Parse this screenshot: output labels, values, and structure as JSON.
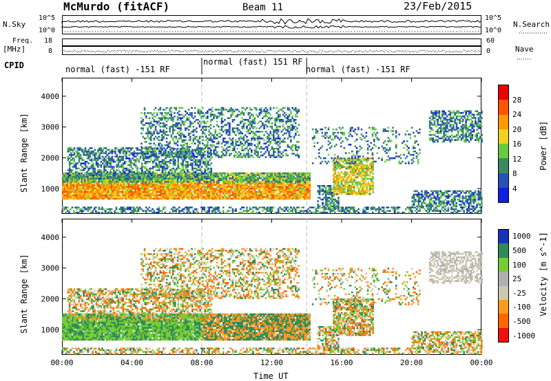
{
  "header": {
    "site": "McMurdo (fitACF)",
    "beam": "Beam 11",
    "date": "23/Feb/2015"
  },
  "top_panels": {
    "nsky_label": "N.Sky",
    "nsearch_label": "N.Search",
    "nsky_ticks": [
      "10^5",
      "10^0"
    ],
    "nsearch_ticks": [
      "10^5",
      "10^0"
    ],
    "freq_label": "Freq.",
    "freq_unit": "[MHz]",
    "freq_ticks": [
      "18",
      "8"
    ],
    "nave_label": "Nave",
    "nave_ticks": [
      "60",
      "0"
    ],
    "cpid_label": "CPID",
    "cpid_segments": [
      {
        "text": "normal (fast) -151 RF",
        "start_hour": 0,
        "end_hour": 8
      },
      {
        "text": "normal (fast) 151 RF",
        "start_hour": 8,
        "end_hour": 14
      },
      {
        "text": "normal (fast) -151 RF",
        "start_hour": 14,
        "end_hour": 24
      }
    ]
  },
  "colors": {
    "power": [
      "#1020e0",
      "#2850b8",
      "#3a8a60",
      "#66cc44",
      "#f0d020",
      "#ff9900",
      "#ff5500",
      "#ee0000"
    ],
    "velocity": [
      "#ee1111",
      "#ff6600",
      "#ff9922",
      "#ccc8b0",
      "#b0b0b0",
      "#77cc33",
      "#2e8b57",
      "#1a33bb"
    ]
  },
  "chart_data": [
    {
      "type": "heatmap",
      "name": "power",
      "ylabel": "Slant Range [km]",
      "xlabel": "",
      "colorbar_label": "Power [dB]",
      "colorbar_ticks": [
        "28",
        "24",
        "20",
        "16",
        "12",
        "8",
        "4"
      ],
      "x_range_hours": [
        0,
        24
      ],
      "y_range_km": [
        180,
        4600
      ],
      "y_ticks": [
        "4000",
        "3000",
        "2000",
        "1000"
      ],
      "x_ticks": [
        "00:00",
        "04:00",
        "08:00",
        "12:00",
        "16:00",
        "20:00",
        "00:00"
      ]
    },
    {
      "type": "heatmap",
      "name": "velocity",
      "ylabel": "Slant Range [km]",
      "xlabel": "Time UT",
      "colorbar_label": "Velocity [m s^-1]",
      "colorbar_ticks": [
        "1000",
        "500",
        "100",
        "25",
        "-25",
        "-100",
        "-500",
        "-1000"
      ],
      "x_range_hours": [
        0,
        24
      ],
      "y_range_km": [
        180,
        4600
      ],
      "y_ticks": [
        "4000",
        "3000",
        "2000",
        "1000"
      ],
      "x_ticks": [
        "00:00",
        "04:00",
        "08:00",
        "12:00",
        "16:00",
        "20:00",
        "00:00"
      ]
    }
  ]
}
